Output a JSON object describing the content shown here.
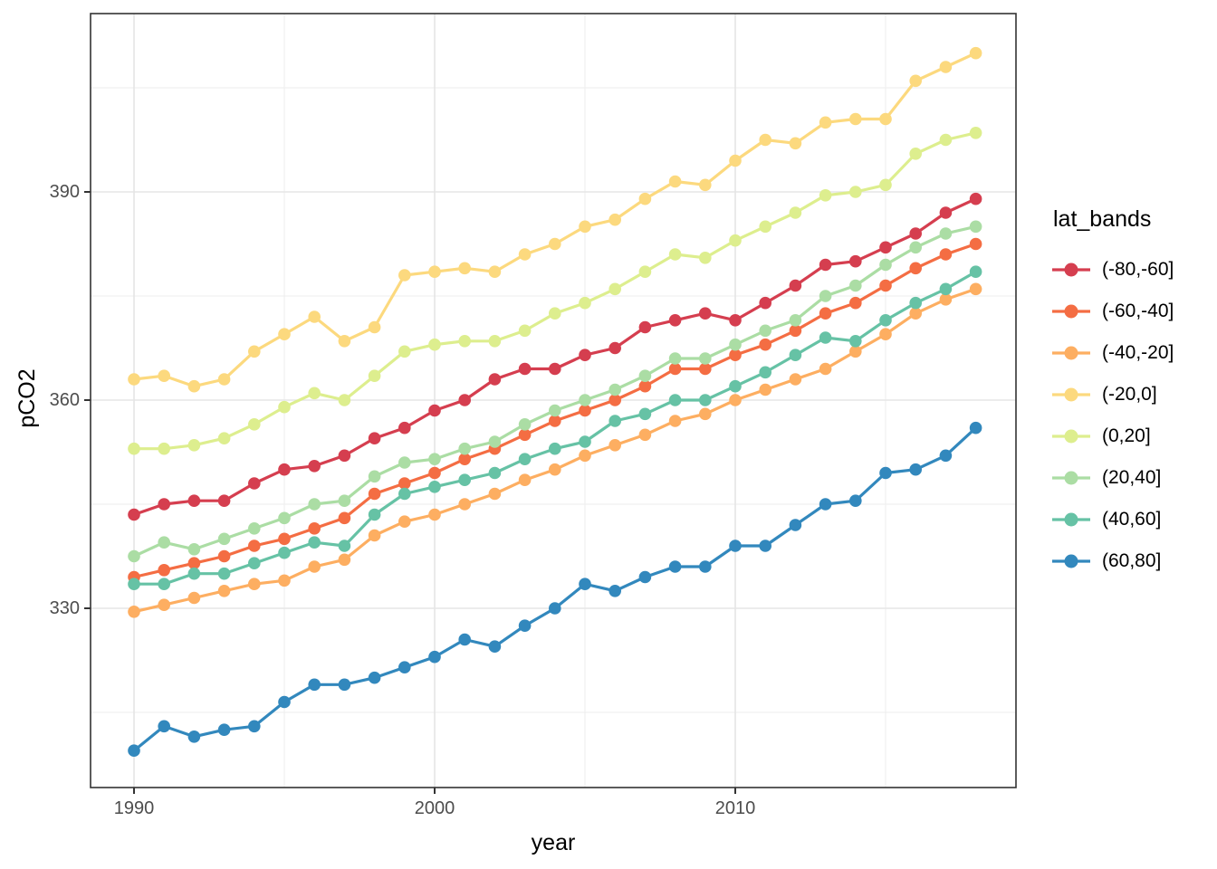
{
  "axis": {
    "x_title": "year",
    "y_title": "pCO2",
    "x_tick_labels": [
      "1990",
      "2000",
      "2010"
    ],
    "y_tick_labels": [
      "330",
      "360",
      "390"
    ]
  },
  "legend": {
    "title": "lat_bands"
  },
  "style": {
    "grid_major_color": "#e5e5e5",
    "grid_minor_color": "#f0f0f0",
    "panel_border_color": "#333333",
    "tick_mark_color": "#333333",
    "tick_label_color": "#4d4d4d"
  },
  "chart_data": {
    "type": "line",
    "title": "",
    "xlabel": "year",
    "ylabel": "pCO2",
    "legend_title": "lat_bands",
    "legend_position": "right",
    "grid": true,
    "x_ticks": [
      1990,
      2000,
      2010
    ],
    "x_minor_ticks": [
      1995,
      2005,
      2015
    ],
    "y_ticks": [
      330,
      360,
      390
    ],
    "y_minor_ticks": [
      315,
      345,
      375,
      405
    ],
    "xlim": [
      1988.5,
      2019.3
    ],
    "ylim": [
      302,
      415
    ],
    "x": [
      1990,
      1991,
      1992,
      1993,
      1994,
      1995,
      1996,
      1997,
      1998,
      1999,
      2000,
      2001,
      2002,
      2003,
      2004,
      2005,
      2006,
      2007,
      2008,
      2009,
      2010,
      2011,
      2012,
      2013,
      2014,
      2015,
      2016,
      2017,
      2018
    ],
    "series": [
      {
        "name": "(-80,-60]",
        "color": "#d53e4f",
        "values": [
          343.5,
          345,
          345.5,
          345.5,
          348,
          350,
          350.5,
          352,
          354.5,
          356,
          358.5,
          360,
          363,
          364.5,
          364.5,
          366.5,
          367.5,
          370.5,
          371.5,
          372.5,
          371.5,
          374,
          376.5,
          379.5,
          380,
          382,
          384,
          387,
          389
        ]
      },
      {
        "name": "(-60,-40]",
        "color": "#f46d43",
        "values": [
          334.5,
          335.5,
          336.5,
          337.5,
          339,
          340,
          341.5,
          343,
          346.5,
          348,
          349.5,
          351.5,
          353,
          355,
          357,
          358.5,
          360,
          362,
          364.5,
          364.5,
          366.5,
          368,
          370,
          372.5,
          374,
          376.5,
          379,
          381,
          382.5
        ]
      },
      {
        "name": "(-40,-20]",
        "color": "#fdae61",
        "values": [
          329.5,
          330.5,
          331.5,
          332.5,
          333.5,
          334,
          336,
          337,
          340.5,
          342.5,
          343.5,
          345,
          346.5,
          348.5,
          350,
          352,
          353.5,
          355,
          357,
          358,
          360,
          361.5,
          363,
          364.5,
          367,
          369.5,
          372.5,
          374.5,
          376
        ]
      },
      {
        "name": "(-20,0]",
        "color": "#fcd97e",
        "values": [
          363,
          363.5,
          362,
          363,
          367,
          369.5,
          372,
          368.5,
          370.5,
          378,
          378.5,
          379,
          378.5,
          381,
          382.5,
          385,
          386,
          389,
          391.5,
          391,
          394.5,
          397.5,
          397,
          400,
          400.5,
          400.5,
          406,
          408,
          410
        ]
      },
      {
        "name": "(0,20]",
        "color": "#ddee8e",
        "values": [
          353,
          353,
          353.5,
          354.5,
          356.5,
          359,
          361,
          360,
          363.5,
          367,
          368,
          368.5,
          368.5,
          370,
          372.5,
          374,
          376,
          378.5,
          381,
          380.5,
          383,
          385,
          387,
          389.5,
          390,
          391,
          395.5,
          397.5,
          398.5
        ]
      },
      {
        "name": "(20,40]",
        "color": "#abdda4",
        "values": [
          337.5,
          339.5,
          338.5,
          340,
          341.5,
          343,
          345,
          345.5,
          349,
          351,
          351.5,
          353,
          354,
          356.5,
          358.5,
          360,
          361.5,
          363.5,
          366,
          366,
          368,
          370,
          371.5,
          375,
          376.5,
          379.5,
          382,
          384,
          385
        ]
      },
      {
        "name": "(40,60]",
        "color": "#66c2a5",
        "values": [
          333.5,
          333.5,
          335,
          335,
          336.5,
          338,
          339.5,
          339,
          343.5,
          346.5,
          347.5,
          348.5,
          349.5,
          351.5,
          353,
          354,
          357,
          358,
          360,
          360,
          362,
          364,
          366.5,
          369,
          368.5,
          371.5,
          374,
          376,
          378.5
        ]
      },
      {
        "name": "(60,80]",
        "color": "#3288bd",
        "values": [
          309.5,
          313,
          311.5,
          312.5,
          313,
          316.5,
          319,
          319,
          320,
          321.5,
          323,
          325.5,
          324.5,
          327.5,
          330,
          333.5,
          332.5,
          334.5,
          336,
          336,
          339,
          339,
          342,
          345,
          345.5,
          349.5,
          350,
          352,
          356
        ]
      }
    ]
  }
}
